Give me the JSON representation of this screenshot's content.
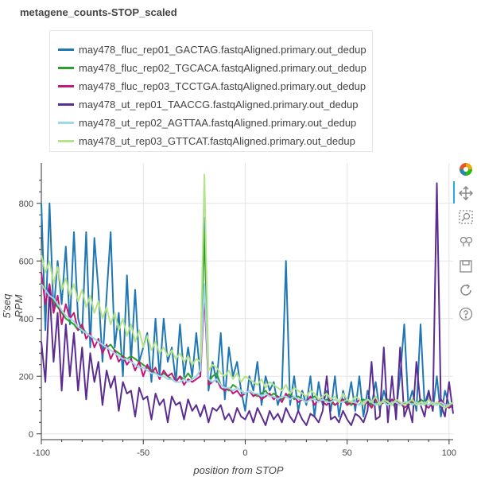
{
  "chart_data": {
    "type": "line",
    "title": "metagene_counts-STOP_scaled",
    "xlabel": "position from STOP",
    "ylabel": "5'seq RPM",
    "xlim": [
      -100,
      102
    ],
    "ylim": [
      -20,
      940
    ],
    "x_ticks": [
      -100,
      -50,
      0,
      50,
      100
    ],
    "y_ticks": [
      0,
      200,
      400,
      600,
      800
    ],
    "grid": true,
    "legend_position": "top-left (above plot)",
    "x": [
      -100,
      -98,
      -96,
      -94,
      -92,
      -90,
      -88,
      -86,
      -84,
      -82,
      -80,
      -78,
      -76,
      -74,
      -72,
      -70,
      -68,
      -66,
      -64,
      -62,
      -60,
      -58,
      -56,
      -54,
      -52,
      -50,
      -48,
      -46,
      -44,
      -42,
      -40,
      -38,
      -36,
      -34,
      -32,
      -30,
      -28,
      -26,
      -24,
      -22,
      -20,
      -18,
      -16,
      -14,
      -12,
      -10,
      -8,
      -6,
      -4,
      -2,
      0,
      2,
      4,
      6,
      8,
      10,
      12,
      14,
      16,
      18,
      20,
      22,
      24,
      26,
      28,
      30,
      32,
      34,
      36,
      38,
      40,
      42,
      44,
      46,
      48,
      50,
      52,
      54,
      56,
      58,
      60,
      62,
      64,
      66,
      68,
      70,
      72,
      74,
      76,
      78,
      80,
      82,
      84,
      86,
      88,
      90,
      92,
      94,
      96,
      98,
      100,
      102
    ],
    "series": [
      {
        "name": "may478_fluc_rep01_GACTAG.fastqAligned.primary.out_dedup",
        "color": "#1f77b4",
        "values": [
          800,
          360,
          800,
          420,
          600,
          450,
          650,
          380,
          700,
          400,
          350,
          700,
          300,
          680,
          500,
          250,
          480,
          700,
          300,
          420,
          200,
          550,
          250,
          500,
          250,
          300,
          350,
          180,
          400,
          200,
          400,
          250,
          300,
          180,
          380,
          200,
          300,
          200,
          350,
          200,
          750,
          150,
          250,
          180,
          350,
          120,
          300,
          200,
          250,
          150,
          80,
          200,
          150,
          250,
          100,
          200,
          150,
          180,
          100,
          150,
          600,
          100,
          200,
          80,
          150,
          100,
          200,
          60,
          180,
          100,
          150,
          80,
          200,
          60,
          150,
          100,
          180,
          80,
          200,
          60,
          150,
          100,
          180,
          80,
          150,
          100,
          120,
          80,
          200,
          380,
          100,
          150,
          80,
          380,
          100,
          150,
          80,
          200,
          60,
          150,
          100,
          90
        ]
      },
      {
        "name": "may478_fluc_rep02_TGCACA.fastqAligned.primary.out_dedup",
        "color": "#2ca02c",
        "values": [
          540,
          500,
          480,
          460,
          440,
          420,
          400,
          390,
          380,
          360,
          370,
          350,
          340,
          330,
          320,
          310,
          300,
          310,
          290,
          280,
          270,
          260,
          270,
          260,
          250,
          240,
          230,
          220,
          210,
          200,
          210,
          200,
          190,
          180,
          200,
          190,
          210,
          190,
          200,
          220,
          700,
          180,
          200,
          210,
          170,
          160,
          150,
          170,
          160,
          150,
          140,
          150,
          140,
          130,
          140,
          150,
          130,
          140,
          130,
          120,
          130,
          140,
          120,
          130,
          120,
          110,
          120,
          130,
          120,
          110,
          120,
          110,
          100,
          110,
          120,
          110,
          100,
          110,
          100,
          120,
          110,
          100,
          110,
          100,
          110,
          120,
          100,
          110,
          100,
          110,
          100,
          110,
          100,
          120,
          110,
          100,
          110,
          100,
          110,
          100,
          100,
          110
        ]
      },
      {
        "name": "may478_fluc_rep03_TCCTGA.fastqAligned.primary.out_dedup",
        "color": "#c2187a",
        "values": [
          560,
          450,
          520,
          420,
          480,
          380,
          450,
          400,
          420,
          360,
          380,
          330,
          350,
          300,
          330,
          280,
          310,
          260,
          290,
          250,
          270,
          240,
          260,
          220,
          250,
          200,
          240,
          210,
          230,
          190,
          220,
          200,
          210,
          180,
          200,
          170,
          190,
          180,
          190,
          200,
          480,
          170,
          180,
          190,
          160,
          150,
          160,
          140,
          150,
          130,
          140,
          150,
          130,
          140,
          120,
          130,
          140,
          120,
          130,
          110,
          140,
          120,
          130,
          110,
          120,
          110,
          130,
          100,
          120,
          110,
          100,
          120,
          100,
          110,
          120,
          100,
          110,
          100,
          120,
          100,
          110,
          90,
          120,
          100,
          110,
          100,
          120,
          100,
          110,
          90,
          100,
          120,
          100,
          110,
          100,
          90,
          110,
          100,
          120,
          100,
          90,
          100
        ]
      },
      {
        "name": "may478_ut_rep01_TAACCG.fastqAligned.primary.out_dedup",
        "color": "#5c2d91",
        "values": [
          320,
          180,
          500,
          250,
          420,
          150,
          380,
          200,
          350,
          150,
          300,
          120,
          280,
          180,
          250,
          100,
          220,
          160,
          200,
          80,
          180,
          140,
          150,
          60,
          160,
          120,
          130,
          50,
          140,
          100,
          120,
          40,
          130,
          100,
          110,
          50,
          120,
          80,
          100,
          60,
          100,
          40,
          90,
          80,
          100,
          50,
          70,
          40,
          90,
          60,
          50,
          80,
          40,
          90,
          60,
          30,
          80,
          50,
          70,
          40,
          90,
          60,
          40,
          80,
          50,
          30,
          70,
          60,
          40,
          80,
          200,
          50,
          60,
          40,
          80,
          50,
          30,
          70,
          60,
          40,
          80,
          250,
          50,
          60,
          300,
          40,
          200,
          50,
          300,
          60,
          100,
          40,
          250,
          100,
          60,
          150,
          80,
          870,
          100,
          60,
          180,
          70
        ]
      },
      {
        "name": "may478_ut_rep02_AGTTAA.fastqAligned.primary.out_dedup",
        "color": "#9ed9ea",
        "values": [
          520,
          500,
          480,
          470,
          450,
          430,
          410,
          400,
          390,
          370,
          360,
          350,
          340,
          330,
          320,
          310,
          300,
          290,
          280,
          270,
          260,
          260,
          250,
          240,
          230,
          230,
          220,
          210,
          210,
          200,
          200,
          190,
          190,
          180,
          180,
          190,
          180,
          190,
          200,
          220,
          520,
          190,
          180,
          190,
          170,
          160,
          160,
          150,
          160,
          150,
          140,
          150,
          140,
          140,
          130,
          140,
          130,
          130,
          120,
          130,
          130,
          120,
          130,
          120,
          120,
          110,
          120,
          120,
          110,
          120,
          110,
          110,
          120,
          110,
          110,
          120,
          110,
          110,
          100,
          110,
          120,
          110,
          100,
          110,
          110,
          100,
          110,
          110,
          100,
          110,
          110,
          100,
          110,
          100,
          110,
          100,
          110,
          100,
          110,
          100,
          100,
          110
        ]
      },
      {
        "name": "may478_ut_rep03_GTTCAT.fastqAligned.primary.out_dedup",
        "color": "#b5e38a",
        "values": [
          620,
          560,
          600,
          520,
          580,
          500,
          540,
          480,
          520,
          460,
          500,
          440,
          480,
          420,
          460,
          400,
          440,
          380,
          420,
          360,
          400,
          340,
          380,
          320,
          360,
          300,
          340,
          290,
          320,
          280,
          300,
          270,
          290,
          260,
          280,
          250,
          270,
          240,
          260,
          250,
          900,
          220,
          240,
          230,
          210,
          200,
          220,
          190,
          210,
          180,
          200,
          190,
          180,
          170,
          190,
          160,
          180,
          170,
          160,
          150,
          170,
          140,
          160,
          150,
          140,
          130,
          150,
          140,
          120,
          130,
          140,
          120,
          130,
          110,
          140,
          120,
          110,
          130,
          120,
          100,
          120,
          110,
          130,
          100,
          120,
          110,
          100,
          120,
          110,
          100,
          110,
          120,
          100,
          110,
          100,
          120,
          100,
          110,
          100,
          90,
          100,
          110
        ]
      }
    ]
  },
  "toolbar": {
    "tools": [
      "bokeh-logo-icon",
      "pan-icon",
      "box-zoom-icon",
      "wheel-zoom-icon",
      "save-icon",
      "reset-icon",
      "help-icon"
    ]
  }
}
